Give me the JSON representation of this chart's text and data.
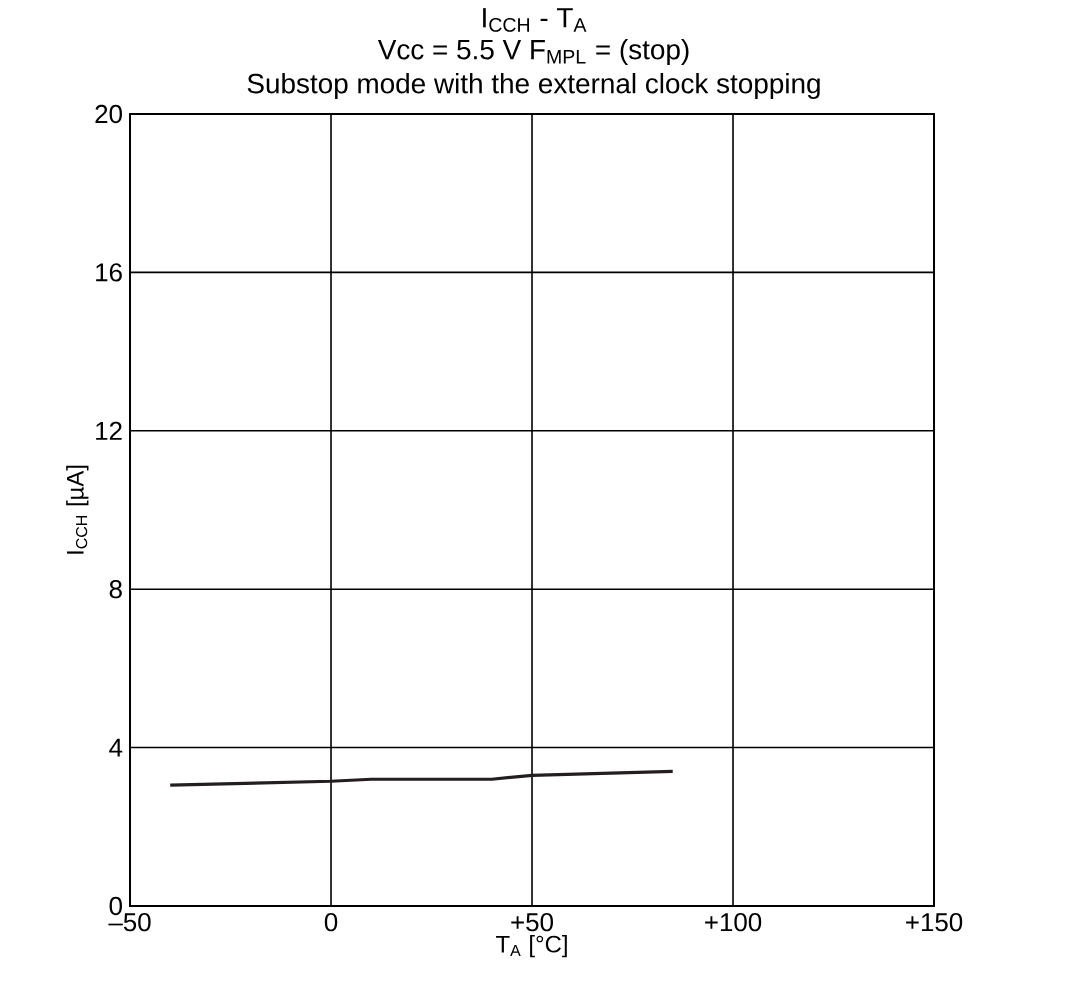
{
  "chart_data": {
    "type": "line",
    "title": "I$_{CCH}$ - T$_{A}$",
    "subtitle": "Vcc = 5.5 V F$_{MPL}$ = (stop)",
    "annotations": [
      "Substop mode with the external clock stopping"
    ],
    "xlabel": "T$_{A}$ [°C]",
    "ylabel": "I$_{CCH}$  [µA]",
    "series": [
      {
        "color": "#231f20",
        "x": [
          -40,
          0,
          10,
          40,
          50,
          85
        ],
        "values": [
          3.05,
          3.15,
          3.2,
          3.2,
          3.3,
          3.4
        ]
      }
    ],
    "xlim": [
      -50,
      150
    ],
    "xticks": [
      {
        "value": -50,
        "label": "–50"
      },
      0,
      {
        "value": 50,
        "label": "+50"
      },
      {
        "value": 100,
        "label": "+100"
      },
      {
        "value": 150,
        "label": "+150"
      }
    ],
    "ylim": [
      0,
      20
    ],
    "yticks": [
      0,
      4,
      8,
      12,
      16,
      20
    ],
    "grid": true
  }
}
